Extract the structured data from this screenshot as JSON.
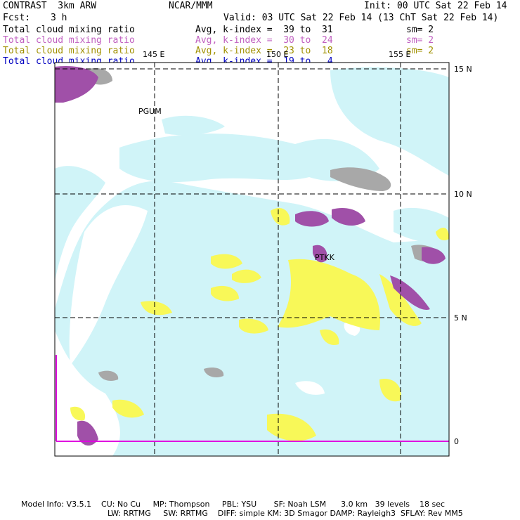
{
  "header": {
    "title": "CONTRAST  3km ARW",
    "org": "NCAR/MMM",
    "init": "Init: 00 UTC Sat 22 Feb 14",
    "fcst_label": "Fcst:",
    "fcst_value": "3 h",
    "valid": "Valid: 03 UTC Sat 22 Feb 14 (13 ChT Sat 22 Feb 14)"
  },
  "legend": [
    {
      "field": "Total cloud mixing ratio",
      "avg": "Avg, k-index =  39 to  31",
      "sm": "sm= 2",
      "color": "#000000"
    },
    {
      "field": "Total cloud mixing ratio",
      "avg": "Avg, k-index =  30 to  24",
      "sm": "sm= 2",
      "color": "#c060c0"
    },
    {
      "field": "Total cloud mixing ratio",
      "avg": "Avg, k-index =  23 to  18",
      "sm": "sm= 2",
      "color": "#a09000"
    },
    {
      "field": "Total cloud mixing ratio",
      "avg": "Avg, k-index =  19 to   4",
      "sm": "",
      "color": "#0000c0"
    }
  ],
  "map": {
    "lon_labels": [
      "145 E",
      "150 E",
      "155 E"
    ],
    "lat_labels": [
      "15 N",
      "10 N",
      "5 N",
      "0"
    ],
    "stations": [
      "PGUM",
      "PTKK"
    ],
    "colors": {
      "gray": "#a8a8a8",
      "purple": "#a050a8",
      "yellow": "#f8f858",
      "cyan": "#d0f4f8",
      "boundary": "#e000e0"
    }
  },
  "footer": {
    "line1": "Model Info: V3.5.1    CU: No Cu     MP: Thompson     PBL: YSU       SF: Noah LSM      3.0 km   39 levels    18 sec",
    "line2": "LW: RRTMG     SW: RRTMG    DIFF: simple KM: 3D Smagor DAMP: Rayleigh3  SFLAY: Rev MM5"
  }
}
